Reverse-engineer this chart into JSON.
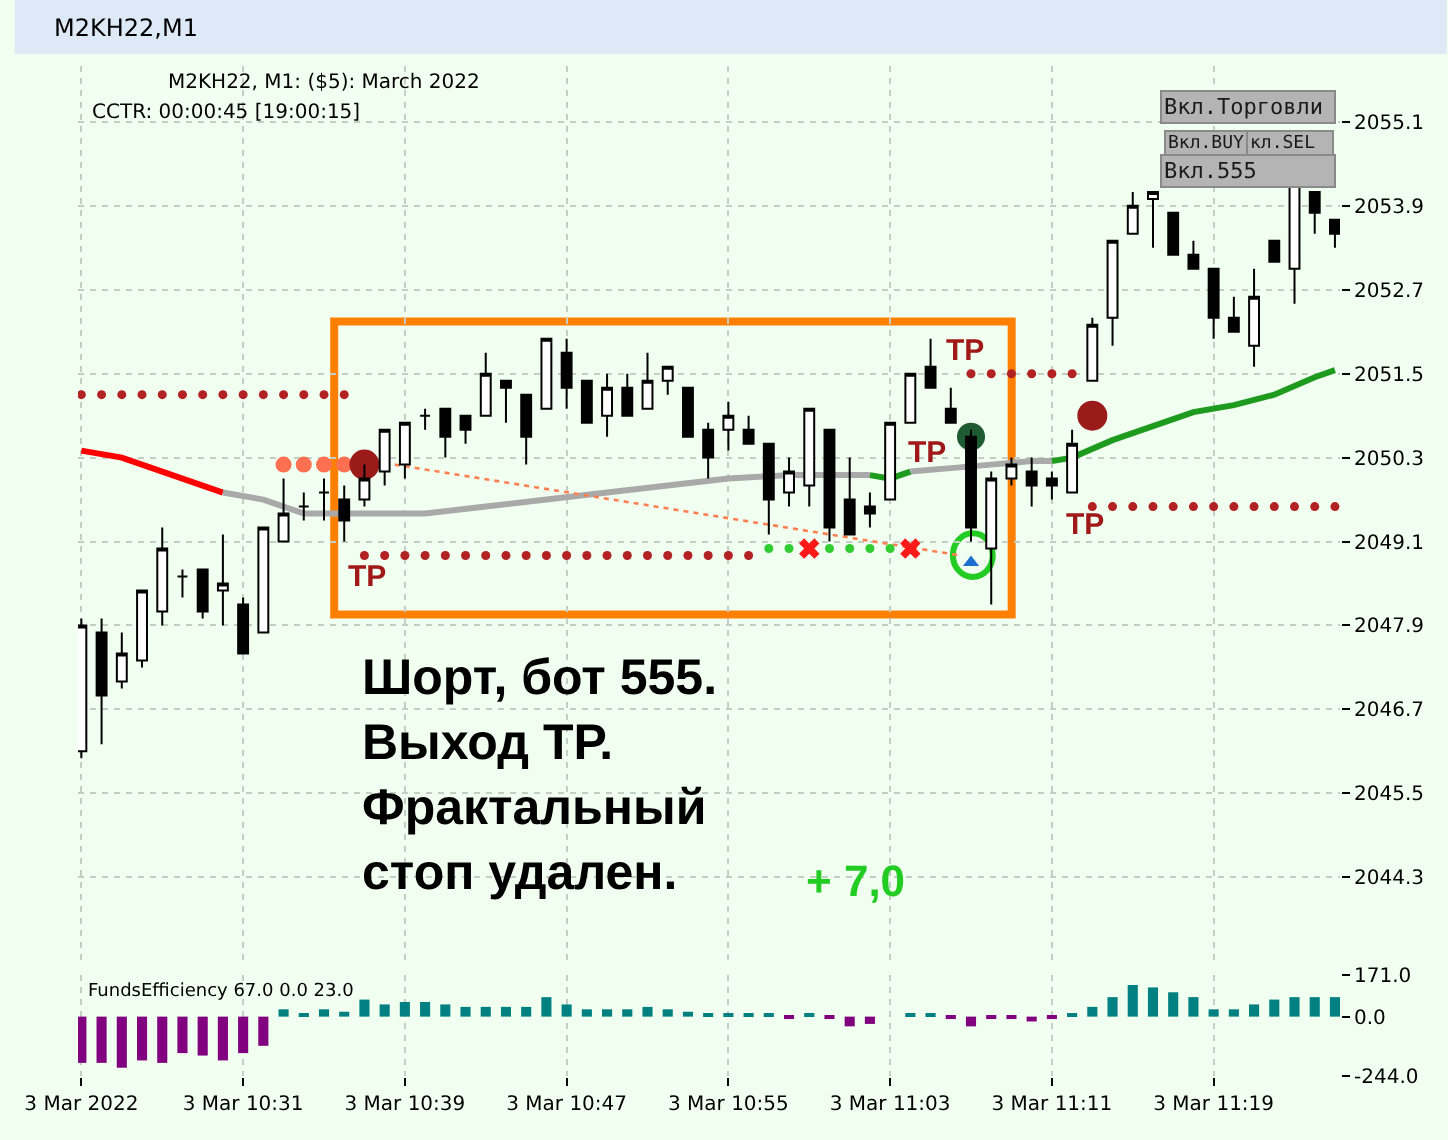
{
  "chart_data": [
    {
      "type": "candlestick",
      "title": "M2KH22,M1",
      "subtitle": "M2KH22, M1: ($5): March 2022",
      "x": [
        "2022-03-03T10:23",
        "2022-03-03T10:24",
        "2022-03-03T10:25",
        "2022-03-03T10:26",
        "2022-03-03T10:27",
        "2022-03-03T10:28",
        "2022-03-03T10:29",
        "2022-03-03T10:30",
        "2022-03-03T10:31",
        "2022-03-03T10:32",
        "2022-03-03T10:33",
        "2022-03-03T10:34",
        "2022-03-03T10:35",
        "2022-03-03T10:36",
        "2022-03-03T10:37",
        "2022-03-03T10:38",
        "2022-03-03T10:39",
        "2022-03-03T10:40",
        "2022-03-03T10:41",
        "2022-03-03T10:42",
        "2022-03-03T10:43",
        "2022-03-03T10:44",
        "2022-03-03T10:45",
        "2022-03-03T10:46",
        "2022-03-03T10:47",
        "2022-03-03T10:48",
        "2022-03-03T10:49",
        "2022-03-03T10:50",
        "2022-03-03T10:51",
        "2022-03-03T10:52",
        "2022-03-03T10:53",
        "2022-03-03T10:54",
        "2022-03-03T10:55",
        "2022-03-03T10:56",
        "2022-03-03T10:57",
        "2022-03-03T10:58",
        "2022-03-03T10:59",
        "2022-03-03T11:00",
        "2022-03-03T11:01",
        "2022-03-03T11:02",
        "2022-03-03T11:03",
        "2022-03-03T11:04",
        "2022-03-03T11:05",
        "2022-03-03T11:06",
        "2022-03-03T11:07",
        "2022-03-03T11:08",
        "2022-03-03T11:09",
        "2022-03-03T11:10",
        "2022-03-03T11:11",
        "2022-03-03T11:12",
        "2022-03-03T11:13",
        "2022-03-03T11:14",
        "2022-03-03T11:15",
        "2022-03-03T11:16",
        "2022-03-03T11:17",
        "2022-03-03T11:18",
        "2022-03-03T11:19",
        "2022-03-03T11:20",
        "2022-03-03T11:21",
        "2022-03-03T11:22",
        "2022-03-03T11:23",
        "2022-03-03T11:24",
        "2022-03-03T11:25"
      ],
      "ohlc": [
        [
          2046.1,
          2048.0,
          2046.0,
          2047.9
        ],
        [
          2047.8,
          2048.0,
          2046.2,
          2046.9
        ],
        [
          2047.1,
          2047.8,
          2047.0,
          2047.5
        ],
        [
          2047.4,
          2048.4,
          2047.3,
          2048.4
        ],
        [
          2048.1,
          2049.3,
          2047.9,
          2049.0
        ],
        [
          2048.6,
          2048.7,
          2048.3,
          2048.6
        ],
        [
          2048.7,
          2048.7,
          2048.0,
          2048.1
        ],
        [
          2048.4,
          2049.2,
          2047.9,
          2048.5
        ],
        [
          2048.2,
          2048.3,
          2047.5,
          2047.5
        ],
        [
          2047.8,
          2049.3,
          2047.8,
          2049.3
        ],
        [
          2049.1,
          2050.0,
          2049.1,
          2049.5
        ],
        [
          2049.6,
          2049.8,
          2049.4,
          2049.6
        ],
        [
          2049.8,
          2050.0,
          2049.4,
          2049.8
        ],
        [
          2049.7,
          2049.9,
          2049.1,
          2049.4
        ],
        [
          2049.7,
          2050.2,
          2049.6,
          2050.0
        ],
        [
          2050.1,
          2050.7,
          2049.9,
          2050.7
        ],
        [
          2050.2,
          2050.8,
          2050.0,
          2050.8
        ],
        [
          2050.9,
          2051.0,
          2050.7,
          2050.9
        ],
        [
          2051.0,
          2051.0,
          2050.3,
          2050.6
        ],
        [
          2050.9,
          2050.9,
          2050.5,
          2050.7
        ],
        [
          2050.9,
          2051.8,
          2050.9,
          2051.5
        ],
        [
          2051.4,
          2051.4,
          2050.8,
          2051.3
        ],
        [
          2051.2,
          2051.2,
          2050.2,
          2050.6
        ],
        [
          2051.0,
          2052.0,
          2051.0,
          2052.0
        ],
        [
          2051.8,
          2052.0,
          2051.0,
          2051.3
        ],
        [
          2051.4,
          2051.4,
          2050.8,
          2050.8
        ],
        [
          2050.9,
          2051.5,
          2050.6,
          2051.3
        ],
        [
          2051.3,
          2051.5,
          2050.9,
          2050.9
        ],
        [
          2051.0,
          2051.8,
          2051.0,
          2051.4
        ],
        [
          2051.4,
          2051.6,
          2051.2,
          2051.6
        ],
        [
          2051.3,
          2051.3,
          2050.6,
          2050.6
        ],
        [
          2050.7,
          2050.8,
          2050.0,
          2050.3
        ],
        [
          2050.7,
          2051.1,
          2050.4,
          2050.9
        ],
        [
          2050.7,
          2050.9,
          2050.5,
          2050.5
        ],
        [
          2050.5,
          2050.5,
          2049.2,
          2049.7
        ],
        [
          2049.8,
          2050.3,
          2049.6,
          2050.1
        ],
        [
          2049.9,
          2051.0,
          2049.6,
          2051.0
        ],
        [
          2050.7,
          2050.7,
          2049.1,
          2049.3
        ],
        [
          2049.7,
          2050.3,
          2049.2,
          2049.2
        ],
        [
          2049.6,
          2049.8,
          2049.3,
          2049.5
        ],
        [
          2049.7,
          2050.8,
          2049.7,
          2050.8
        ],
        [
          2050.8,
          2051.5,
          2050.8,
          2051.5
        ],
        [
          2051.6,
          2052.0,
          2051.3,
          2051.3
        ],
        [
          2051.0,
          2051.3,
          2050.8,
          2050.8
        ],
        [
          2050.6,
          2050.7,
          2049.1,
          2049.3
        ],
        [
          2049.0,
          2050.1,
          2048.2,
          2050.0
        ],
        [
          2050.0,
          2050.3,
          2049.9,
          2050.2
        ],
        [
          2050.1,
          2050.3,
          2049.6,
          2049.9
        ],
        [
          2050.0,
          2050.1,
          2049.7,
          2049.9
        ],
        [
          2049.8,
          2050.7,
          2049.8,
          2050.5
        ],
        [
          2051.4,
          2052.3,
          2051.4,
          2052.2
        ],
        [
          2052.3,
          2053.4,
          2051.9,
          2053.4
        ],
        [
          2053.5,
          2054.1,
          2053.5,
          2053.9
        ],
        [
          2054.0,
          2054.1,
          2053.3,
          2054.1
        ],
        [
          2053.8,
          2053.8,
          2053.2,
          2053.2
        ],
        [
          2053.2,
          2053.4,
          2053.0,
          2053.0
        ],
        [
          2053.0,
          2053.0,
          2052.0,
          2052.3
        ],
        [
          2052.3,
          2052.6,
          2052.1,
          2052.1
        ],
        [
          2051.9,
          2053.0,
          2051.6,
          2052.6
        ],
        [
          2053.4,
          2053.4,
          2053.1,
          2053.1
        ],
        [
          2053.0,
          2054.2,
          2052.5,
          2054.2
        ],
        [
          2054.1,
          2054.1,
          2053.5,
          2053.8
        ],
        [
          2053.7,
          2053.7,
          2053.3,
          2053.5
        ]
      ],
      "colors": [
        "#ffffff",
        "#000000",
        "#ffffff",
        "#ffffff",
        "#ffffff",
        "#000000",
        "#000000",
        "#ffffff",
        "#000000",
        "#ffffff",
        "#ffffff",
        "#000000",
        "#000000",
        "#000000",
        "#ffffff",
        "#ffffff",
        "#ffffff",
        "#000000",
        "#000000",
        "#000000",
        "#ffffff",
        "#000000",
        "#000000",
        "#ffffff",
        "#000000",
        "#000000",
        "#ffffff",
        "#000000",
        "#ffffff",
        "#ffffff",
        "#000000",
        "#000000",
        "#ffffff",
        "#000000",
        "#000000",
        "#ffffff",
        "#ffffff",
        "#000000",
        "#000000",
        "#000000",
        "#ffffff",
        "#ffffff",
        "#000000",
        "#000000",
        "#000000",
        "#ffffff",
        "#ffffff",
        "#000000",
        "#000000",
        "#ffffff",
        "#ffffff",
        "#ffffff",
        "#ffffff",
        "#ffffff",
        "#000000",
        "#000000",
        "#000000",
        "#000000",
        "#ffffff",
        "#000000",
        "#ffffff",
        "#000000",
        "#000000"
      ],
      "color": "#000000",
      "series": [
        {
          "type": "line",
          "color": "#ff0000",
          "x": [
            "2022-03-03T10:23",
            "2022-03-03T10:25",
            "2022-03-03T10:27",
            "2022-03-03T10:29",
            "2022-03-03T10:30"
          ],
          "values": [
            2050.4,
            2050.3,
            2050.1,
            2049.9,
            2049.8
          ]
        },
        {
          "type": "line",
          "color": "#a9a9a9",
          "x": [
            "2022-03-03T10:30",
            "2022-03-03T10:32",
            "2022-03-03T10:34",
            "2022-03-03T10:37",
            "2022-03-03T10:40",
            "2022-03-03T10:43",
            "2022-03-03T10:46",
            "2022-03-03T10:49",
            "2022-03-03T10:52",
            "2022-03-03T10:55",
            "2022-03-03T10:58",
            "2022-03-03T11:00",
            "2022-03-03T11:02",
            "2022-03-03T11:03",
            "2022-03-03T11:04",
            "2022-03-03T11:06",
            "2022-03-03T11:08",
            "2022-03-03T11:10",
            "2022-03-03T11:11"
          ],
          "values": [
            2049.8,
            2049.7,
            2049.5,
            2049.5,
            2049.5,
            2049.6,
            2049.7,
            2049.8,
            2049.9,
            2050.0,
            2050.05,
            2050.05,
            2050.05,
            null,
            2050.1,
            2050.15,
            2050.2,
            2050.25,
            2050.25
          ]
        },
        {
          "type": "line",
          "color": "#1e9b1e",
          "x": [
            "2022-03-03T11:02",
            "2022-03-03T11:03",
            "2022-03-03T11:04",
            "2022-03-03T11:05",
            "2022-03-03T11:11",
            "2022-03-03T11:12",
            "2022-03-03T11:14",
            "2022-03-03T11:16",
            "2022-03-03T11:18",
            "2022-03-03T11:20",
            "2022-03-03T11:22",
            "2022-03-03T11:24",
            "2022-03-03T11:25"
          ],
          "values": [
            2050.05,
            2050.0,
            2050.1,
            null,
            2050.25,
            2050.3,
            2050.55,
            2050.75,
            2050.95,
            2051.05,
            2051.2,
            2051.45,
            2051.55
          ]
        },
        {
          "type": "line",
          "color": "#ff7f50",
          "line_style": "dotted",
          "x": [
            "2022-03-03T10:38:30",
            "2022-03-03T11:06:30"
          ],
          "values": [
            2050.2,
            2048.9
          ]
        },
        {
          "type": "scatter",
          "marker": "circle",
          "color": "#b22222",
          "x": [
            "2022-03-03T10:23",
            "2022-03-03T10:24",
            "2022-03-03T10:25",
            "2022-03-03T10:26",
            "2022-03-03T10:27",
            "2022-03-03T10:28",
            "2022-03-03T10:29",
            "2022-03-03T10:30",
            "2022-03-03T10:31",
            "2022-03-03T10:32",
            "2022-03-03T10:33",
            "2022-03-03T10:34",
            "2022-03-03T10:35",
            "2022-03-03T10:36"
          ],
          "values": [
            2051.2,
            2051.2,
            2051.2,
            2051.2,
            2051.2,
            2051.2,
            2051.2,
            2051.2,
            2051.2,
            2051.2,
            2051.2,
            2051.2,
            2051.2,
            2051.2
          ]
        },
        {
          "type": "scatter",
          "marker": "circle",
          "color": "#b22222",
          "x": [
            "2022-03-03T11:07",
            "2022-03-03T11:08",
            "2022-03-03T11:09",
            "2022-03-03T11:10",
            "2022-03-03T11:11",
            "2022-03-03T11:12"
          ],
          "values": [
            2051.5,
            2051.5,
            2051.5,
            2051.5,
            2051.5,
            2051.5
          ]
        },
        {
          "type": "scatter",
          "marker": "circle",
          "color": "#b22222",
          "x": [
            "2022-03-03T10:37",
            "2022-03-03T10:38",
            "2022-03-03T10:39",
            "2022-03-03T10:40",
            "2022-03-03T10:41",
            "2022-03-03T10:42",
            "2022-03-03T10:43",
            "2022-03-03T10:44",
            "2022-03-03T10:45",
            "2022-03-03T10:46",
            "2022-03-03T10:47",
            "2022-03-03T10:48",
            "2022-03-03T10:49",
            "2022-03-03T10:50",
            "2022-03-03T10:51",
            "2022-03-03T10:52",
            "2022-03-03T10:53",
            "2022-03-03T10:54",
            "2022-03-03T10:55",
            "2022-03-03T10:56"
          ],
          "values": [
            2048.9,
            2048.9,
            2048.9,
            2048.9,
            2048.9,
            2048.9,
            2048.9,
            2048.9,
            2048.9,
            2048.9,
            2048.9,
            2048.9,
            2048.9,
            2048.9,
            2048.9,
            2048.9,
            2048.9,
            2048.9,
            2048.9,
            2048.9
          ]
        },
        {
          "type": "scatter",
          "marker": "circle",
          "color": "#b22222",
          "x": [
            "2022-03-03T11:13",
            "2022-03-03T11:14",
            "2022-03-03T11:15",
            "2022-03-03T11:16",
            "2022-03-03T11:17",
            "2022-03-03T11:18",
            "2022-03-03T11:19",
            "2022-03-03T11:20",
            "2022-03-03T11:21",
            "2022-03-03T11:22",
            "2022-03-03T11:23",
            "2022-03-03T11:24",
            "2022-03-03T11:25"
          ],
          "values": [
            2049.6,
            2049.6,
            2049.6,
            2049.6,
            2049.6,
            2049.6,
            2049.6,
            2049.6,
            2049.6,
            2049.6,
            2049.6,
            2049.6,
            2049.6
          ]
        },
        {
          "type": "scatter",
          "marker": "circle",
          "color": "#32cd32",
          "x": [
            "2022-03-03T10:57",
            "2022-03-03T10:58",
            "2022-03-03T11:00",
            "2022-03-03T11:01",
            "2022-03-03T11:02",
            "2022-03-03T11:03"
          ],
          "values": [
            2049.0,
            2049.0,
            2049.0,
            2049.0,
            2049.0,
            2049.0
          ]
        },
        {
          "type": "scatter",
          "marker": "cross",
          "color": "#ff1a1a",
          "x": [
            "2022-03-03T10:59",
            "2022-03-03T11:04"
          ],
          "values": [
            2049.0,
            2049.0
          ]
        },
        {
          "type": "scatter",
          "marker": "circle",
          "color": "#ff7050",
          "x": [
            "2022-03-03T10:33",
            "2022-03-03T10:34",
            "2022-03-03T10:35",
            "2022-03-03T10:36"
          ],
          "values": [
            2050.2,
            2050.2,
            2050.2,
            2050.2
          ]
        },
        {
          "type": "scatter",
          "marker": "circle",
          "color": "#9b1b1b",
          "x": [
            "2022-03-03T10:37",
            "2022-03-03T11:13"
          ],
          "values": [
            2050.2,
            2050.9
          ]
        },
        {
          "type": "scatter",
          "marker": "circle",
          "color": "#1e5a32",
          "x": [
            "2022-03-03T11:07"
          ],
          "values": [
            2050.6
          ]
        },
        {
          "type": "scatter",
          "marker": "triangle",
          "color": "#1e6fd0",
          "x": [
            "2022-03-03T11:07"
          ],
          "values": [
            2048.8
          ]
        }
      ],
      "xlim": [
        "2022-03-03T10:22:50",
        "2022-03-03T11:25:15"
      ],
      "xticks": [
        {
          "value": "2022-03-03T10:23",
          "label": null
        },
        {
          "value": "2022-03-03T10:31",
          "label": null
        },
        {
          "value": "2022-03-03T10:39",
          "label": null
        },
        {
          "value": "2022-03-03T10:47",
          "label": null
        },
        {
          "value": "2022-03-03T10:55",
          "label": null
        },
        {
          "value": "2022-03-03T11:03",
          "label": null
        },
        {
          "value": "2022-03-03T11:11",
          "label": null
        },
        {
          "value": "2022-03-03T11:19",
          "label": null
        }
      ],
      "ylim": [
        2043.1,
        2055.9
      ],
      "yticks": [
        2055.1,
        2053.9,
        2052.7,
        2051.5,
        2050.3,
        2049.1,
        2047.9,
        2046.7,
        2045.5,
        2044.3
      ],
      "grid": true,
      "tick_labels": "y",
      "annotations": [
        "Шорт, бот 555.\nВыход ТР.\nФрактальный\nстоп удален.",
        "+ 7,0",
        "CCTR: 00:00:45 [19:00:15]",
        "Вкл.Торговли",
        "Вкл.BUY",
        "кл.SEL",
        "Вкл.555",
        "TP",
        "TP",
        "TP",
        "TP"
      ]
    },
    {
      "type": "bar",
      "title": "FundsEfficiency 67.0 0.0 23.0",
      "x": [
        "2022-03-03T10:23",
        "2022-03-03T10:24",
        "2022-03-03T10:25",
        "2022-03-03T10:26",
        "2022-03-03T10:27",
        "2022-03-03T10:28",
        "2022-03-03T10:29",
        "2022-03-03T10:30",
        "2022-03-03T10:31",
        "2022-03-03T10:32",
        "2022-03-03T10:33",
        "2022-03-03T10:34",
        "2022-03-03T10:35",
        "2022-03-03T10:36",
        "2022-03-03T10:37",
        "2022-03-03T10:38",
        "2022-03-03T10:39",
        "2022-03-03T10:40",
        "2022-03-03T10:41",
        "2022-03-03T10:42",
        "2022-03-03T10:43",
        "2022-03-03T10:44",
        "2022-03-03T10:45",
        "2022-03-03T10:46",
        "2022-03-03T10:47",
        "2022-03-03T10:48",
        "2022-03-03T10:49",
        "2022-03-03T10:50",
        "2022-03-03T10:51",
        "2022-03-03T10:52",
        "2022-03-03T10:53",
        "2022-03-03T10:54",
        "2022-03-03T10:55",
        "2022-03-03T10:56",
        "2022-03-03T10:57",
        "2022-03-03T10:58",
        "2022-03-03T10:59",
        "2022-03-03T11:00",
        "2022-03-03T11:01",
        "2022-03-03T11:02",
        "2022-03-03T11:03",
        "2022-03-03T11:04",
        "2022-03-03T11:05",
        "2022-03-03T11:06",
        "2022-03-03T11:07",
        "2022-03-03T11:08",
        "2022-03-03T11:09",
        "2022-03-03T11:10",
        "2022-03-03T11:11",
        "2022-03-03T11:12",
        "2022-03-03T11:13",
        "2022-03-03T11:14",
        "2022-03-03T11:15",
        "2022-03-03T11:16",
        "2022-03-03T11:17",
        "2022-03-03T11:18",
        "2022-03-03T11:19",
        "2022-03-03T11:20",
        "2022-03-03T11:21",
        "2022-03-03T11:22",
        "2022-03-03T11:23",
        "2022-03-03T11:24",
        "2022-03-03T11:25"
      ],
      "values": [
        -190,
        -190,
        -210,
        -180,
        -190,
        -150,
        -160,
        -180,
        -150,
        -120,
        30,
        10,
        30,
        20,
        70,
        50,
        60,
        60,
        50,
        40,
        40,
        40,
        40,
        80,
        50,
        30,
        30,
        30,
        40,
        30,
        20,
        10,
        10,
        10,
        10,
        -10,
        10,
        -10,
        -40,
        -30,
        null,
        10,
        10,
        -10,
        -40,
        -10,
        -10,
        -20,
        -10,
        10,
        40,
        80,
        130,
        120,
        100,
        80,
        30,
        30,
        50,
        70,
        80,
        80,
        80
      ],
      "colors": [
        "#800080",
        "#800080",
        "#800080",
        "#800080",
        "#800080",
        "#800080",
        "#800080",
        "#800080",
        "#800080",
        "#800080",
        "#008080",
        "#008080",
        "#008080",
        "#008080",
        "#008080",
        "#008080",
        "#008080",
        "#008080",
        "#008080",
        "#008080",
        "#008080",
        "#008080",
        "#008080",
        "#008080",
        "#008080",
        "#008080",
        "#008080",
        "#008080",
        "#008080",
        "#008080",
        "#008080",
        "#008080",
        "#008080",
        "#008080",
        "#008080",
        "#800080",
        "#008080",
        "#800080",
        "#800080",
        "#800080",
        "#008080",
        "#008080",
        "#008080",
        "#800080",
        "#800080",
        "#800080",
        "#800080",
        "#800080",
        "#800080",
        "#008080",
        "#008080",
        "#008080",
        "#008080",
        "#008080",
        "#008080",
        "#008080",
        "#008080",
        "#008080",
        "#008080",
        "#008080",
        "#008080",
        "#008080",
        "#008080"
      ],
      "xlim": [
        "2022-03-03T10:22:50",
        "2022-03-03T11:25:15"
      ],
      "xticks": [
        {
          "value": "2022-03-03T10:23",
          "label": "3 Mar 2022"
        },
        {
          "value": "2022-03-03T10:31",
          "label": "3 Mar 10:31"
        },
        {
          "value": "2022-03-03T10:39",
          "label": "3 Mar 10:39"
        },
        {
          "value": "2022-03-03T10:47",
          "label": "3 Mar 10:47"
        },
        {
          "value": "2022-03-03T10:55",
          "label": "3 Mar 10:55"
        },
        {
          "value": "2022-03-03T11:03",
          "label": "3 Mar 11:03"
        },
        {
          "value": "2022-03-03T11:11",
          "label": "3 Mar 11:11"
        },
        {
          "value": "2022-03-03T11:19",
          "label": "3 Mar 11:19"
        }
      ],
      "ylim": [
        -244,
        171
      ],
      "yticks": [
        {
          "value": 171,
          "label": "171.0"
        },
        {
          "value": 0,
          "label": "0.0"
        },
        {
          "value": -244,
          "label": "-244.0"
        }
      ],
      "grid": "x"
    }
  ]
}
